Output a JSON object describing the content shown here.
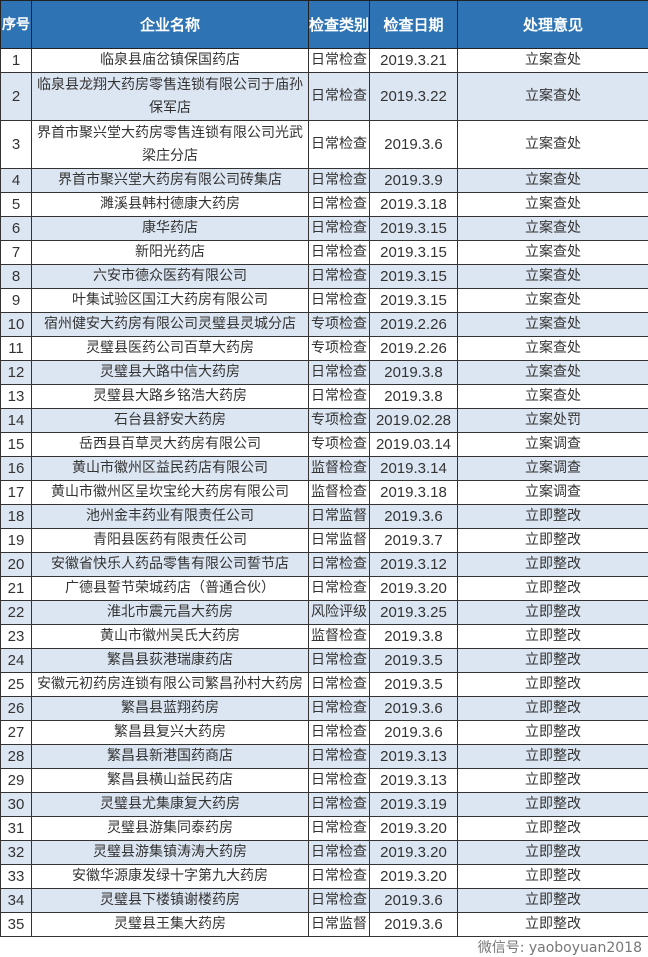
{
  "colors": {
    "header_bg": "#2E74B5",
    "alt_row_bg": "#DCE6F2"
  },
  "headers": {
    "no": "序号",
    "name": "企业名称",
    "type": "检查类别",
    "date": "检查日期",
    "result": "处理意见"
  },
  "rows": [
    [
      "1",
      "临泉县庙岔镇保国药店",
      "日常检查",
      "2019.3.21",
      "立案查处"
    ],
    [
      "2",
      "临泉县龙翔大药房零售连锁有限公司于庙孙保军店",
      "日常检查",
      "2019.3.22",
      "立案查处"
    ],
    [
      "3",
      "界首市聚兴堂大药房零售连锁有限公司光武梁庄分店",
      "日常检查",
      "2019.3.6",
      "立案查处"
    ],
    [
      "4",
      "界首市聚兴堂大药房有限公司砖集店",
      "日常检查",
      "2019.3.9",
      "立案查处"
    ],
    [
      "5",
      "濉溪县韩村德康大药房",
      "日常检查",
      "2019.3.18",
      "立案查处"
    ],
    [
      "6",
      "康华药店",
      "日常检查",
      "2019.3.15",
      "立案查处"
    ],
    [
      "7",
      "新阳光药店",
      "日常检查",
      "2019.3.15",
      "立案查处"
    ],
    [
      "8",
      "六安市德众医药有限公司",
      "日常检查",
      "2019.3.15",
      "立案查处"
    ],
    [
      "9",
      "叶集试验区国江大药房有限公司",
      "日常检查",
      "2019.3.15",
      "立案查处"
    ],
    [
      "10",
      "宿州健安大药房有限公司灵璧县灵城分店",
      "专项检查",
      "2019.2.26",
      "立案查处"
    ],
    [
      "11",
      "灵璧县医药公司百草大药房",
      "专项检查",
      "2019.2.26",
      "立案查处"
    ],
    [
      "12",
      "灵璧县大路中信大药房",
      "日常检查",
      "2019.3.8",
      "立案查处"
    ],
    [
      "13",
      "灵璧县大路乡铭浩大药房",
      "日常检查",
      "2019.3.8",
      "立案查处"
    ],
    [
      "14",
      "石台县舒安大药房",
      "专项检查",
      "2019.02.28",
      "立案处罚"
    ],
    [
      "15",
      "岳西县百草灵大药房有限公司",
      "专项检查",
      "2019.03.14",
      "立案调查"
    ],
    [
      "16",
      "黄山市徽州区益民药店有限公司",
      "监督检查",
      "2019.3.14",
      "立案调查"
    ],
    [
      "17",
      "黄山市徽州区呈坎宝纶大药房有限公司",
      "监督检查",
      "2019.3.18",
      "立案调查"
    ],
    [
      "18",
      "池州金丰药业有限责任公司",
      "日常监督",
      "2019.3.6",
      "立即整改"
    ],
    [
      "19",
      "青阳县医药有限责任公司",
      "日常监督",
      "2019.3.7",
      "立即整改"
    ],
    [
      "20",
      "安徽省快乐人药品零售有限公司誓节店",
      "日常检查",
      "2019.3.12",
      "立即整改"
    ],
    [
      "21",
      "广德县誓节荣城药店（普通合伙）",
      "日常检查",
      "2019.3.20",
      "立即整改"
    ],
    [
      "22",
      "淮北市震元昌大药房",
      "风险评级",
      "2019.3.25",
      "立即整改"
    ],
    [
      "23",
      "黄山市徽州吴氏大药房",
      "监督检查",
      "2019.3.8",
      "立即整改"
    ],
    [
      "24",
      "繁昌县荻港瑞康药店",
      "日常检查",
      "2019.3.5",
      "立即整改"
    ],
    [
      "25",
      "安徽元初药房连锁有限公司繁昌孙村大药房",
      "日常检查",
      "2019.3.5",
      "立即整改"
    ],
    [
      "26",
      "繁昌县蓝翔药房",
      "日常检查",
      "2019.3.6",
      "立即整改"
    ],
    [
      "27",
      "繁昌县复兴大药房",
      "日常检查",
      "2019.3.6",
      "立即整改"
    ],
    [
      "28",
      "繁昌县新港国药商店",
      "日常检查",
      "2019.3.13",
      "立即整改"
    ],
    [
      "29",
      "繁昌县横山益民药店",
      "日常检查",
      "2019.3.13",
      "立即整改"
    ],
    [
      "30",
      "灵璧县尤集康复大药房",
      "日常检查",
      "2019.3.19",
      "立即整改"
    ],
    [
      "31",
      "灵璧县游集同泰药房",
      "日常检查",
      "2019.3.20",
      "立即整改"
    ],
    [
      "32",
      "灵璧县游集镇涛涛大药房",
      "日常检查",
      "2019.3.20",
      "立即整改"
    ],
    [
      "33",
      "安徽华源康发绿十字第九大药房",
      "日常检查",
      "2019.3.20",
      "立即整改"
    ],
    [
      "34",
      "灵璧县下楼镇谢楼药房",
      "日常检查",
      "2019.3.6",
      "立即整改"
    ],
    [
      "35",
      "灵璧县王集大药房",
      "日常监督",
      "2019.3.6",
      "立即整改"
    ]
  ],
  "watermark": "微信号: yaoboyuan2018"
}
